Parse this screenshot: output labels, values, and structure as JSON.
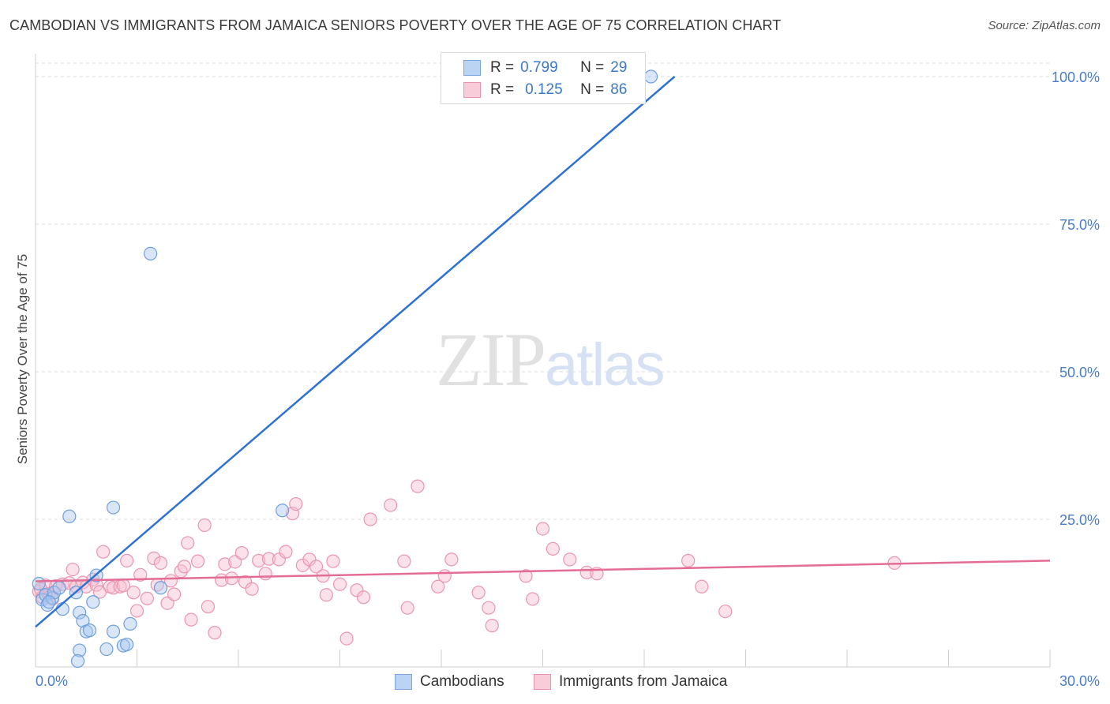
{
  "title": "CAMBODIAN VS IMMIGRANTS FROM JAMAICA SENIORS POVERTY OVER THE AGE OF 75 CORRELATION CHART",
  "source": "Source: ZipAtlas.com",
  "watermark": {
    "zip": "ZIP",
    "atlas": "atlas"
  },
  "legend": {
    "rows": [
      {
        "r_label": "R =",
        "r_value": "0.799",
        "n_label": "N =",
        "n_value": "29",
        "color": "#a9c8f0",
        "border": "#7aa6dd"
      },
      {
        "r_label": "R =",
        "r_value": "0.125",
        "n_label": "N =",
        "n_value": "86",
        "color": "#f7bfd0",
        "border": "#e995b1"
      }
    ]
  },
  "bottom_legend": {
    "series1": "Cambodians",
    "series2": "Immigrants from Jamaica"
  },
  "colors": {
    "blue_line": "#2e72d2",
    "pink_line": "#e46d97",
    "axis_text": "#4a7cc8"
  },
  "chart_data": {
    "type": "scatter",
    "title": "CAMBODIAN VS IMMIGRANTS FROM JAMAICA SENIORS POVERTY OVER THE AGE OF 75 CORRELATION CHART",
    "xlabel": "",
    "ylabel": "Seniors Poverty Over the Age of 75",
    "xlim": [
      0,
      30
    ],
    "ylim": [
      0,
      100
    ],
    "x_tick_labels": [
      {
        "value": 0,
        "label": "0.0%"
      },
      {
        "value": 30,
        "label": "30.0%"
      }
    ],
    "y_tick_labels": [
      {
        "value": 25,
        "label": "25.0%"
      },
      {
        "value": 50,
        "label": "50.0%"
      },
      {
        "value": 75,
        "label": "75.0%"
      },
      {
        "value": 100,
        "label": "100.0%"
      }
    ],
    "grid": true,
    "legend_position": "top-center",
    "series": [
      {
        "name": "Cambodians",
        "color": "#a9c8f0",
        "stroke": "#6f9fdc",
        "trend": {
          "x": [
            0,
            18.9
          ],
          "y": [
            6.8,
            100
          ]
        },
        "points": [
          [
            0.1,
            14.1
          ],
          [
            0.2,
            11.4
          ],
          [
            0.3,
            12.2
          ],
          [
            0.35,
            10.5
          ],
          [
            0.5,
            11.7
          ],
          [
            0.55,
            12.6
          ],
          [
            0.7,
            13.4
          ],
          [
            0.8,
            9.8
          ],
          [
            1.2,
            12.6
          ],
          [
            1.3,
            9.2
          ],
          [
            1.4,
            7.8
          ],
          [
            1.0,
            25.5
          ],
          [
            1.5,
            6.0
          ],
          [
            1.6,
            6.2
          ],
          [
            1.7,
            11.0
          ],
          [
            1.8,
            15.5
          ],
          [
            1.3,
            2.8
          ],
          [
            2.1,
            3.0
          ],
          [
            2.3,
            27.0
          ],
          [
            2.3,
            6.0
          ],
          [
            2.6,
            3.6
          ],
          [
            2.7,
            3.8
          ],
          [
            2.8,
            7.3
          ],
          [
            3.4,
            70.0
          ],
          [
            3.7,
            13.4
          ],
          [
            7.3,
            26.5
          ],
          [
            18.2,
            100.0
          ],
          [
            0.4,
            11.0
          ],
          [
            1.25,
            1.0
          ]
        ]
      },
      {
        "name": "Immigrants from Jamaica",
        "color": "#f7bfd0",
        "stroke": "#e995b1",
        "trend": {
          "x": [
            0,
            30
          ],
          "y": [
            14.5,
            18.0
          ]
        },
        "points": [
          [
            0.1,
            12.8
          ],
          [
            0.2,
            11.8
          ],
          [
            0.3,
            13.8
          ],
          [
            0.4,
            12.4
          ],
          [
            0.5,
            11.5
          ],
          [
            0.6,
            13.7
          ],
          [
            0.8,
            14.0
          ],
          [
            1.0,
            14.2
          ],
          [
            1.1,
            16.5
          ],
          [
            1.2,
            13.6
          ],
          [
            1.4,
            14.3
          ],
          [
            1.5,
            13.6
          ],
          [
            1.7,
            14.8
          ],
          [
            1.8,
            13.9
          ],
          [
            1.9,
            12.7
          ],
          [
            2.0,
            19.5
          ],
          [
            2.2,
            13.6
          ],
          [
            2.3,
            13.4
          ],
          [
            2.5,
            13.6
          ],
          [
            2.6,
            13.8
          ],
          [
            2.7,
            18.0
          ],
          [
            2.9,
            12.6
          ],
          [
            3.0,
            9.5
          ],
          [
            3.1,
            15.6
          ],
          [
            3.3,
            11.6
          ],
          [
            3.5,
            18.4
          ],
          [
            3.6,
            13.9
          ],
          [
            3.7,
            17.6
          ],
          [
            3.9,
            10.8
          ],
          [
            4.0,
            14.6
          ],
          [
            4.1,
            12.3
          ],
          [
            4.3,
            16.2
          ],
          [
            4.4,
            17.0
          ],
          [
            4.5,
            21.0
          ],
          [
            4.6,
            8.0
          ],
          [
            4.8,
            17.9
          ],
          [
            5.0,
            24.0
          ],
          [
            5.1,
            10.2
          ],
          [
            5.3,
            5.8
          ],
          [
            5.5,
            14.7
          ],
          [
            5.6,
            17.4
          ],
          [
            5.8,
            15.0
          ],
          [
            5.9,
            17.8
          ],
          [
            6.1,
            19.3
          ],
          [
            6.2,
            14.4
          ],
          [
            6.4,
            13.2
          ],
          [
            6.6,
            18.0
          ],
          [
            6.8,
            15.8
          ],
          [
            6.9,
            18.3
          ],
          [
            7.2,
            18.2
          ],
          [
            7.4,
            19.5
          ],
          [
            7.6,
            26.0
          ],
          [
            7.7,
            27.6
          ],
          [
            7.9,
            17.2
          ],
          [
            8.1,
            18.2
          ],
          [
            8.3,
            17.0
          ],
          [
            8.5,
            15.4
          ],
          [
            8.6,
            12.2
          ],
          [
            8.8,
            17.9
          ],
          [
            9.0,
            14.0
          ],
          [
            9.2,
            4.8
          ],
          [
            9.5,
            13.0
          ],
          [
            9.7,
            11.8
          ],
          [
            9.9,
            25.0
          ],
          [
            10.5,
            27.4
          ],
          [
            10.9,
            17.9
          ],
          [
            11.0,
            10.0
          ],
          [
            11.3,
            30.6
          ],
          [
            11.9,
            13.6
          ],
          [
            12.1,
            15.4
          ],
          [
            12.3,
            18.2
          ],
          [
            13.1,
            12.6
          ],
          [
            13.4,
            10.0
          ],
          [
            13.5,
            7.0
          ],
          [
            14.5,
            15.4
          ],
          [
            14.7,
            11.5
          ],
          [
            15.0,
            23.4
          ],
          [
            15.3,
            20.0
          ],
          [
            15.8,
            18.2
          ],
          [
            16.3,
            16.0
          ],
          [
            16.6,
            15.8
          ],
          [
            19.3,
            18.0
          ],
          [
            19.7,
            13.6
          ],
          [
            20.4,
            9.4
          ],
          [
            25.4,
            17.6
          ],
          [
            0.15,
            13.2
          ]
        ]
      }
    ]
  }
}
